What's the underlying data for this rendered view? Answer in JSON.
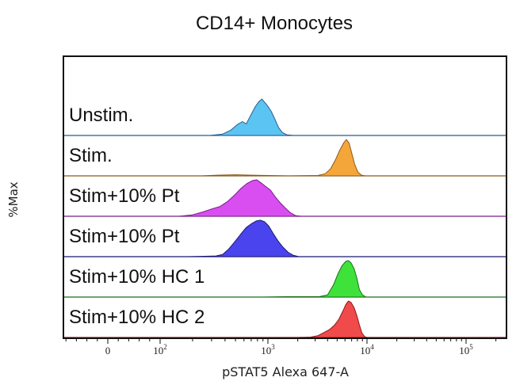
{
  "chart_data": {
    "type": "area",
    "title": "CD14+ Monocytes",
    "xlabel": "pSTAT5 Alexa 647-A",
    "ylabel": "%Max",
    "x_scale": "logicle",
    "x_ticks": [
      {
        "value": 0,
        "base": "0",
        "exp": ""
      },
      {
        "value": 100,
        "base": "10",
        "exp": "2"
      },
      {
        "value": 1000,
        "base": "10",
        "exp": "3"
      },
      {
        "value": 10000,
        "base": "10",
        "exp": "4"
      },
      {
        "value": 100000,
        "base": "10",
        "exp": "5"
      }
    ],
    "series": [
      {
        "name": "Unstim.",
        "color": "#5bc4f2",
        "line": "#2a5d8a",
        "peak_x": 850,
        "points": [
          [
            290,
            0
          ],
          [
            380,
            4
          ],
          [
            450,
            14
          ],
          [
            520,
            30
          ],
          [
            580,
            38
          ],
          [
            630,
            32
          ],
          [
            700,
            58
          ],
          [
            760,
            78
          ],
          [
            820,
            92
          ],
          [
            880,
            100
          ],
          [
            940,
            90
          ],
          [
            1000,
            80
          ],
          [
            1080,
            66
          ],
          [
            1180,
            44
          ],
          [
            1280,
            22
          ],
          [
            1400,
            8
          ],
          [
            1550,
            2
          ],
          [
            1800,
            0
          ]
        ]
      },
      {
        "name": "Stim.",
        "color": "#f5a63a",
        "line": "#8a5a18",
        "peak_x": 6200,
        "points": [
          [
            240,
            0
          ],
          [
            340,
            2
          ],
          [
            500,
            3
          ],
          [
            700,
            2
          ],
          [
            1000,
            1
          ],
          [
            1600,
            0
          ],
          [
            3200,
            1
          ],
          [
            3800,
            6
          ],
          [
            4300,
            20
          ],
          [
            4800,
            44
          ],
          [
            5300,
            70
          ],
          [
            5800,
            90
          ],
          [
            6200,
            100
          ],
          [
            6600,
            90
          ],
          [
            7000,
            64
          ],
          [
            7500,
            32
          ],
          [
            8100,
            10
          ],
          [
            8800,
            2
          ],
          [
            9600,
            0
          ]
        ]
      },
      {
        "name": "Stim+10% Pt",
        "color": "#d84ef0",
        "line": "#7a1e8a",
        "peak_x": 780,
        "points": [
          [
            150,
            0
          ],
          [
            200,
            4
          ],
          [
            250,
            12
          ],
          [
            300,
            20
          ],
          [
            360,
            27
          ],
          [
            420,
            40
          ],
          [
            490,
            58
          ],
          [
            560,
            76
          ],
          [
            640,
            90
          ],
          [
            720,
            98
          ],
          [
            790,
            100
          ],
          [
            860,
            92
          ],
          [
            950,
            82
          ],
          [
            1060,
            72
          ],
          [
            1180,
            54
          ],
          [
            1320,
            38
          ],
          [
            1480,
            24
          ],
          [
            1680,
            10
          ],
          [
            1900,
            2
          ],
          [
            2150,
            0
          ]
        ]
      },
      {
        "name": "Stim+10% Pt",
        "color": "#4a44ee",
        "line": "#1a1870",
        "peak_x": 830,
        "points": [
          [
            180,
            0
          ],
          [
            260,
            1
          ],
          [
            330,
            2
          ],
          [
            380,
            6
          ],
          [
            430,
            20
          ],
          [
            490,
            40
          ],
          [
            560,
            62
          ],
          [
            630,
            80
          ],
          [
            700,
            90
          ],
          [
            780,
            98
          ],
          [
            850,
            100
          ],
          [
            930,
            96
          ],
          [
            1020,
            84
          ],
          [
            1130,
            64
          ],
          [
            1260,
            44
          ],
          [
            1420,
            26
          ],
          [
            1600,
            12
          ],
          [
            1800,
            4
          ],
          [
            2050,
            0
          ]
        ]
      },
      {
        "name": "Stim+10% HC 1",
        "color": "#3fe23a",
        "line": "#1a6e18",
        "peak_x": 6400,
        "points": [
          [
            900,
            0
          ],
          [
            1500,
            1
          ],
          [
            2500,
            1
          ],
          [
            3300,
            1
          ],
          [
            4000,
            6
          ],
          [
            4600,
            34
          ],
          [
            5100,
            64
          ],
          [
            5600,
            86
          ],
          [
            6100,
            98
          ],
          [
            6500,
            100
          ],
          [
            6900,
            94
          ],
          [
            7400,
            78
          ],
          [
            7900,
            52
          ],
          [
            8400,
            20
          ],
          [
            9000,
            6
          ],
          [
            9800,
            0
          ]
        ]
      },
      {
        "name": "Stim+10% HC 2",
        "color": "#f04a4a",
        "line": "#8a1a1a",
        "peak_x": 6200,
        "points": [
          [
            2000,
            0
          ],
          [
            2700,
            1
          ],
          [
            3200,
            5
          ],
          [
            3700,
            14
          ],
          [
            4200,
            22
          ],
          [
            4700,
            34
          ],
          [
            5200,
            50
          ],
          [
            5700,
            72
          ],
          [
            6100,
            90
          ],
          [
            6500,
            100
          ],
          [
            6900,
            96
          ],
          [
            7400,
            82
          ],
          [
            7900,
            60
          ],
          [
            8400,
            34
          ],
          [
            8900,
            12
          ],
          [
            9500,
            2
          ],
          [
            10000,
            0
          ]
        ]
      }
    ]
  }
}
